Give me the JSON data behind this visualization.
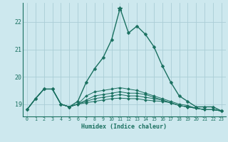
{
  "xlabel": "Humidex (Indice chaleur)",
  "bg_color": "#cde8ee",
  "grid_color": "#aacdd6",
  "line_color": "#1a7060",
  "x_ticks": [
    0,
    1,
    2,
    3,
    4,
    5,
    6,
    7,
    8,
    9,
    10,
    11,
    12,
    13,
    14,
    15,
    16,
    17,
    18,
    19,
    20,
    21,
    22,
    23
  ],
  "y_ticks": [
    19,
    20,
    21,
    22
  ],
  "ylim": [
    18.55,
    22.7
  ],
  "xlim": [
    -0.5,
    23.5
  ],
  "lines": [
    [
      18.8,
      19.2,
      19.55,
      19.55,
      19.0,
      18.9,
      19.1,
      19.8,
      20.3,
      20.7,
      21.35,
      22.5,
      21.6,
      21.85,
      21.55,
      21.1,
      20.4,
      19.8,
      19.3,
      19.1,
      18.9,
      18.9,
      18.9,
      18.75
    ],
    [
      18.8,
      19.2,
      19.55,
      19.55,
      19.0,
      18.9,
      19.0,
      19.3,
      19.45,
      19.5,
      19.55,
      19.6,
      19.55,
      19.5,
      19.4,
      19.3,
      19.2,
      19.1,
      19.0,
      18.95,
      18.85,
      18.8,
      18.8,
      18.75
    ],
    [
      18.8,
      19.2,
      19.55,
      19.55,
      19.0,
      18.9,
      19.0,
      19.15,
      19.3,
      19.35,
      19.4,
      19.45,
      19.4,
      19.4,
      19.35,
      19.25,
      19.15,
      19.05,
      18.95,
      18.9,
      18.85,
      18.8,
      18.8,
      18.75
    ],
    [
      18.8,
      19.2,
      19.55,
      19.55,
      19.0,
      18.9,
      19.0,
      19.1,
      19.2,
      19.25,
      19.3,
      19.35,
      19.3,
      19.3,
      19.25,
      19.2,
      19.15,
      19.05,
      18.95,
      18.9,
      18.85,
      18.8,
      18.8,
      18.75
    ],
    [
      18.8,
      19.2,
      19.55,
      19.55,
      19.0,
      18.9,
      19.0,
      19.05,
      19.1,
      19.15,
      19.2,
      19.22,
      19.2,
      19.2,
      19.15,
      19.12,
      19.1,
      19.05,
      18.95,
      18.9,
      18.85,
      18.8,
      18.8,
      18.75
    ]
  ],
  "peak_x": 11,
  "peak_y": 22.5
}
